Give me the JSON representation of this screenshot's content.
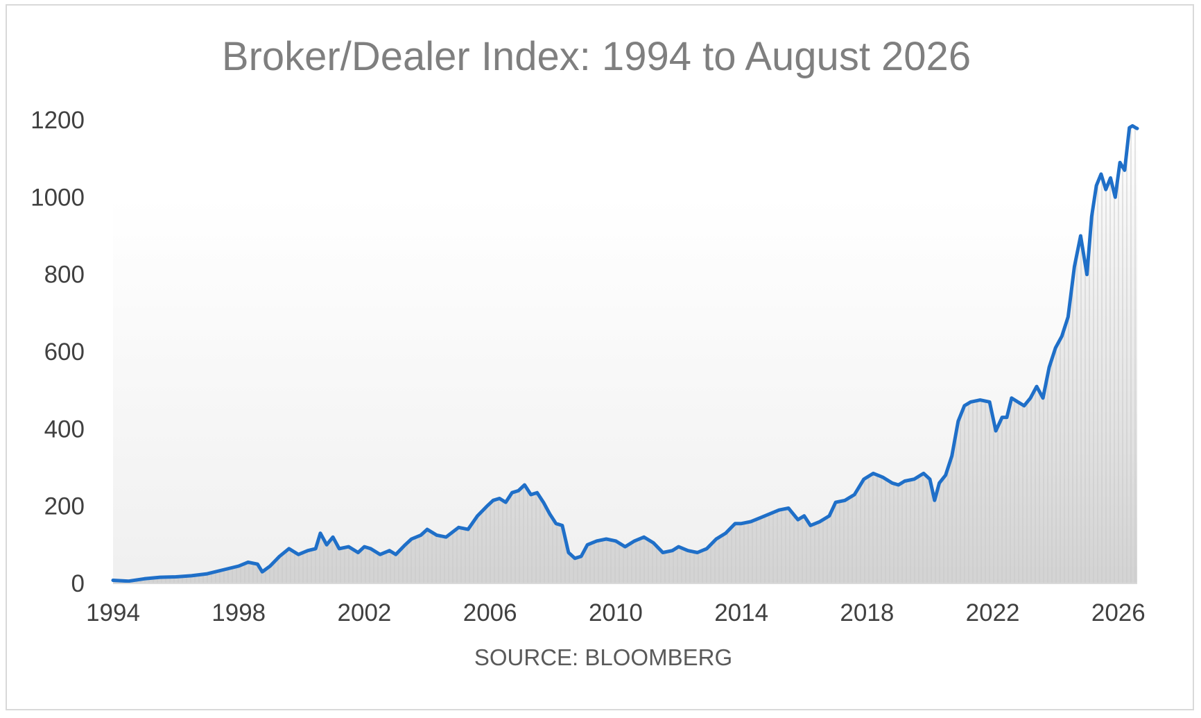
{
  "chart_data": {
    "type": "area",
    "title": "Broker/Dealer Index: 1994 to August 2026",
    "xlabel": "SOURCE: BLOOMBERG",
    "ylabel": "",
    "xlim": [
      1994,
      2026.6
    ],
    "ylim": [
      0,
      1200
    ],
    "y_ticks": [
      "0",
      "200",
      "400",
      "600",
      "800",
      "1000",
      "1200"
    ],
    "x_ticks": [
      "1994",
      "1998",
      "2002",
      "2006",
      "2010",
      "2014",
      "2018",
      "2022",
      "2026"
    ],
    "grid": false,
    "legend": "none",
    "colors": {
      "line": "#1f6fc8",
      "fill_top": "#ffffff",
      "fill_bottom": "#d3d3d3",
      "hatch": "#c8c8c8"
    },
    "x": [
      1994.0,
      1994.5,
      1995.0,
      1995.5,
      1996.0,
      1996.5,
      1997.0,
      1997.5,
      1998.0,
      1998.3,
      1998.6,
      1998.75,
      1999.0,
      1999.3,
      1999.6,
      1999.9,
      2000.2,
      2000.45,
      2000.6,
      2000.8,
      2001.0,
      2001.2,
      2001.5,
      2001.8,
      2002.0,
      2002.2,
      2002.5,
      2002.8,
      2003.0,
      2003.3,
      2003.5,
      2003.8,
      2004.0,
      2004.3,
      2004.6,
      2005.0,
      2005.3,
      2005.6,
      2005.9,
      2006.1,
      2006.3,
      2006.5,
      2006.7,
      2006.9,
      2007.1,
      2007.3,
      2007.5,
      2007.7,
      2007.9,
      2008.1,
      2008.3,
      2008.5,
      2008.7,
      2008.9,
      2009.1,
      2009.4,
      2009.7,
      2010.0,
      2010.3,
      2010.6,
      2010.9,
      2011.2,
      2011.5,
      2011.8,
      2012.0,
      2012.3,
      2012.6,
      2012.9,
      2013.2,
      2013.5,
      2013.8,
      2014.0,
      2014.3,
      2014.6,
      2014.9,
      2015.2,
      2015.5,
      2015.8,
      2016.0,
      2016.2,
      2016.5,
      2016.8,
      2017.0,
      2017.3,
      2017.6,
      2017.9,
      2018.2,
      2018.5,
      2018.8,
      2019.0,
      2019.2,
      2019.5,
      2019.8,
      2020.0,
      2020.15,
      2020.3,
      2020.5,
      2020.7,
      2020.9,
      2021.1,
      2021.3,
      2021.6,
      2021.9,
      2022.1,
      2022.3,
      2022.45,
      2022.6,
      2022.8,
      2023.0,
      2023.2,
      2023.4,
      2023.6,
      2023.8,
      2024.0,
      2024.2,
      2024.4,
      2024.6,
      2024.8,
      2025.0,
      2025.15,
      2025.3,
      2025.45,
      2025.6,
      2025.75,
      2025.9,
      2026.05,
      2026.2,
      2026.35,
      2026.45,
      2026.55,
      2026.6
    ],
    "y": [
      8,
      6,
      12,
      16,
      17,
      20,
      25,
      35,
      45,
      55,
      50,
      30,
      45,
      70,
      90,
      75,
      85,
      90,
      130,
      100,
      120,
      90,
      95,
      80,
      95,
      90,
      75,
      85,
      75,
      100,
      115,
      125,
      140,
      125,
      120,
      145,
      140,
      175,
      200,
      215,
      220,
      210,
      235,
      240,
      255,
      230,
      235,
      210,
      180,
      155,
      150,
      80,
      65,
      70,
      100,
      110,
      115,
      110,
      95,
      110,
      120,
      105,
      80,
      85,
      95,
      85,
      80,
      90,
      115,
      130,
      155,
      155,
      160,
      170,
      180,
      190,
      195,
      165,
      175,
      150,
      160,
      175,
      210,
      215,
      230,
      270,
      285,
      275,
      260,
      255,
      265,
      270,
      285,
      270,
      215,
      260,
      280,
      330,
      420,
      460,
      470,
      475,
      470,
      395,
      430,
      430,
      480,
      470,
      460,
      480,
      510,
      480,
      560,
      610,
      640,
      690,
      820,
      900,
      800,
      950,
      1030,
      1060,
      1020,
      1050,
      1000,
      1090,
      1070,
      1180,
      1185,
      1180,
      1178
    ],
    "source": "SOURCE: BLOOMBERG"
  }
}
